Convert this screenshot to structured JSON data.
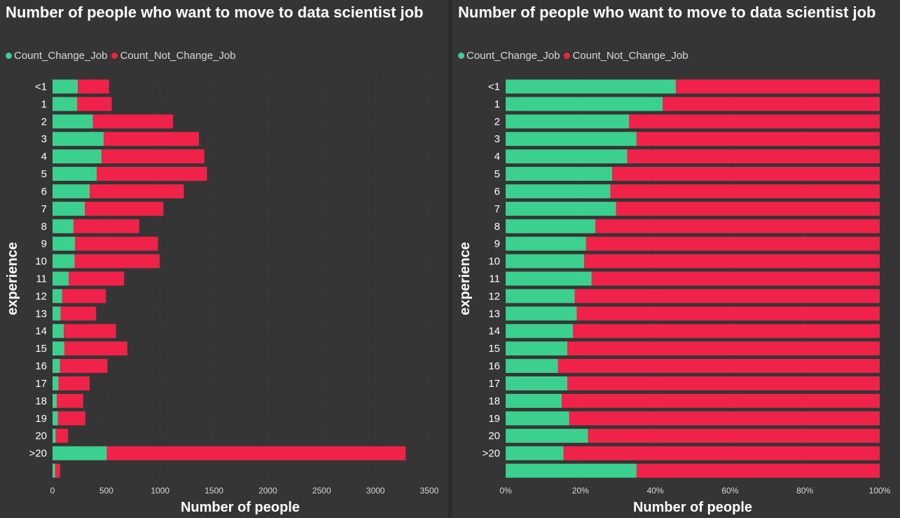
{
  "colors": {
    "change": "#3cd08e",
    "not_change": "#f0224a",
    "background": "#353535"
  },
  "chart_data": [
    {
      "type": "bar",
      "orientation": "horizontal",
      "stacked": true,
      "title": "Number of people who want to move to data scientist job",
      "xlabel": "Number of people",
      "ylabel": "experience",
      "xlim": [
        0,
        3500
      ],
      "xticks": [
        "0",
        "500",
        "1000",
        "1500",
        "2000",
        "2500",
        "3000",
        "3500"
      ],
      "legend_position": "top-left",
      "categories": [
        "<1",
        "1",
        "2",
        "3",
        "4",
        "5",
        "6",
        "7",
        "8",
        "9",
        "10",
        "11",
        "12",
        "13",
        "14",
        "15",
        "16",
        "17",
        "18",
        "19",
        "20",
        ">20",
        ""
      ],
      "series": [
        {
          "name": "Count_Change_Job",
          "values": [
            235,
            230,
            375,
            475,
            455,
            410,
            345,
            300,
            195,
            210,
            205,
            150,
            90,
            75,
            105,
            110,
            70,
            55,
            40,
            50,
            30,
            505,
            25
          ]
        },
        {
          "name": "Count_Not_Change_Job",
          "values": [
            290,
            320,
            745,
            885,
            955,
            1025,
            875,
            730,
            610,
            770,
            790,
            515,
            405,
            330,
            485,
            585,
            440,
            290,
            245,
            255,
            115,
            2775,
            45
          ]
        }
      ]
    },
    {
      "type": "bar",
      "orientation": "horizontal",
      "stacked": true,
      "percent": true,
      "title": "Number of people who want to move to data scientist job",
      "xlabel": "Number of people",
      "ylabel": "experience",
      "xlim": [
        0,
        100
      ],
      "xticks": [
        "0%",
        "20%",
        "40%",
        "60%",
        "80%",
        "100%"
      ],
      "legend_position": "top-left",
      "categories": [
        "<1",
        "1",
        "2",
        "3",
        "4",
        "5",
        "6",
        "7",
        "8",
        "9",
        "10",
        "11",
        "12",
        "13",
        "14",
        "15",
        "16",
        "17",
        "18",
        "19",
        "20",
        ">20",
        ""
      ],
      "series": [
        {
          "name": "Count_Change_Job",
          "values": [
            45.5,
            42,
            33,
            35,
            32.5,
            28.5,
            28,
            29.5,
            24,
            21.5,
            21,
            23,
            18.5,
            19,
            18,
            16.5,
            14,
            16.5,
            15,
            17,
            22,
            15.5,
            35
          ]
        },
        {
          "name": "Count_Not_Change_Job",
          "values": [
            54.5,
            58,
            67,
            65,
            67.5,
            71.5,
            72,
            70.5,
            76,
            78.5,
            79,
            77,
            81.5,
            81,
            82,
            83.5,
            86,
            83.5,
            85,
            83,
            78,
            84.5,
            65
          ]
        }
      ]
    }
  ]
}
